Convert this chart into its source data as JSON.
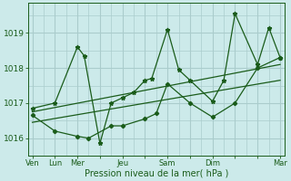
{
  "bg_color": "#cceaea",
  "grid_color": "#aacccc",
  "line_color": "#1a5c1a",
  "title": "Pression niveau de la mer( hPa )",
  "yticks": [
    1016,
    1017,
    1018,
    1019
  ],
  "ylim": [
    1015.5,
    1019.85
  ],
  "xlim": [
    -0.2,
    11.2
  ],
  "xtick_labels": [
    "Ven",
    "Lun",
    "Mer",
    "",
    "Jeu",
    "",
    "Sam",
    "",
    "Dim",
    "",
    "",
    "Mar"
  ],
  "xtick_positions": [
    0,
    1,
    2,
    3,
    4,
    5,
    6,
    7,
    8,
    9,
    10,
    11
  ],
  "series1_x": [
    0,
    1,
    2,
    2.3,
    3,
    3.5,
    4,
    4.5,
    5,
    5.3,
    6,
    6.5,
    7,
    8,
    8.5,
    9,
    10,
    10.5,
    11
  ],
  "series1_y": [
    1016.85,
    1017.0,
    1018.6,
    1018.35,
    1015.85,
    1017.0,
    1017.15,
    1017.3,
    1017.65,
    1017.7,
    1019.1,
    1017.95,
    1017.65,
    1017.05,
    1017.65,
    1019.55,
    1018.1,
    1019.15,
    1018.3
  ],
  "series2_x": [
    0,
    1,
    2,
    2.5,
    3.5,
    4,
    5,
    5.5,
    6,
    7,
    8,
    9,
    10,
    11
  ],
  "series2_y": [
    1016.65,
    1016.2,
    1016.05,
    1016.0,
    1016.35,
    1016.35,
    1016.55,
    1016.7,
    1017.55,
    1017.0,
    1016.6,
    1017.0,
    1018.0,
    1018.3
  ],
  "trend1_x": [
    0,
    11
  ],
  "trend1_y": [
    1016.75,
    1018.1
  ],
  "trend2_x": [
    0,
    11
  ],
  "trend2_y": [
    1016.45,
    1017.65
  ]
}
